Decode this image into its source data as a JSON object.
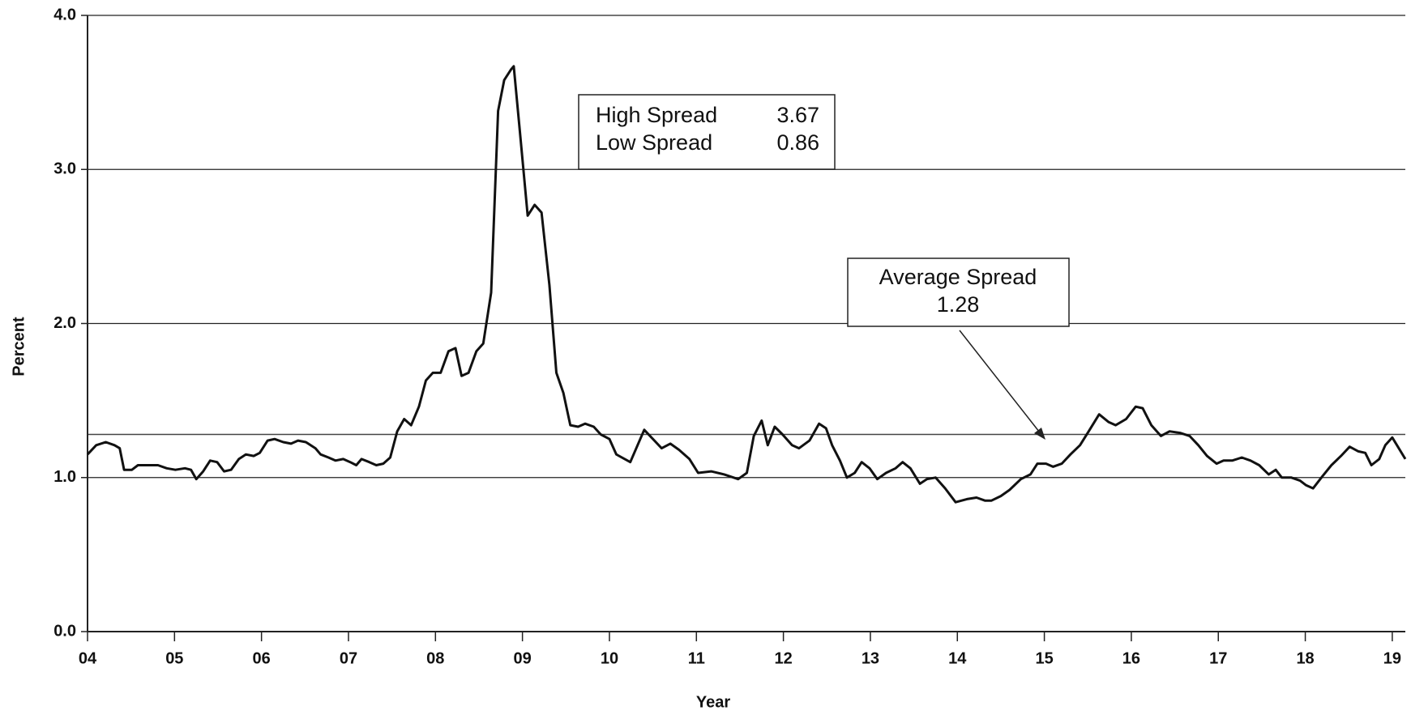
{
  "chart_data": {
    "type": "line",
    "y_label": "Percent",
    "x_label": "Year",
    "xlim": [
      2004,
      2019.15
    ],
    "ylim": [
      0,
      4
    ],
    "xticks": [
      {
        "value": 2004,
        "label": "04"
      },
      {
        "value": 2005,
        "label": "05"
      },
      {
        "value": 2006,
        "label": "06"
      },
      {
        "value": 2007,
        "label": "07"
      },
      {
        "value": 2008,
        "label": "08"
      },
      {
        "value": 2009,
        "label": "09"
      },
      {
        "value": 2010,
        "label": "10"
      },
      {
        "value": 2011,
        "label": "11"
      },
      {
        "value": 2012,
        "label": "12"
      },
      {
        "value": 2013,
        "label": "13"
      },
      {
        "value": 2014,
        "label": "14"
      },
      {
        "value": 2015,
        "label": "15"
      },
      {
        "value": 2016,
        "label": "16"
      },
      {
        "value": 2017,
        "label": "17"
      },
      {
        "value": 2018,
        "label": "18"
      },
      {
        "value": 2019,
        "label": "19"
      }
    ],
    "yticks": [
      {
        "value": 0,
        "label": "0.0"
      },
      {
        "value": 1,
        "label": "1.0"
      },
      {
        "value": 2,
        "label": "2.0"
      },
      {
        "value": 3,
        "label": "3.0"
      },
      {
        "value": 4,
        "label": "4.0"
      }
    ],
    "grid": true,
    "series": [
      {
        "color": "#111111",
        "x": [
          2004.0,
          2004.1,
          2004.21,
          2004.31,
          2004.37,
          2004.42,
          2004.51,
          2004.58,
          2004.7,
          2004.81,
          2004.91,
          2005.01,
          2005.12,
          2005.19,
          2005.25,
          2005.33,
          2005.41,
          2005.49,
          2005.57,
          2005.65,
          2005.74,
          2005.82,
          2005.91,
          2005.98,
          2006.07,
          2006.15,
          2006.25,
          2006.34,
          2006.42,
          2006.51,
          2006.62,
          2006.68,
          2006.77,
          2006.85,
          2006.94,
          2007.02,
          2007.09,
          2007.15,
          2007.24,
          2007.32,
          2007.4,
          2007.48,
          2007.56,
          2007.64,
          2007.72,
          2007.81,
          2007.89,
          2007.97,
          2008.06,
          2008.15,
          2008.23,
          2008.3,
          2008.38,
          2008.47,
          2008.55,
          2008.64,
          2008.72,
          2008.79,
          2008.87,
          2008.9,
          2008.97,
          2009.06,
          2009.14,
          2009.22,
          2009.31,
          2009.39,
          2009.47,
          2009.55,
          2009.64,
          2009.72,
          2009.82,
          2009.9,
          2010.0,
          2010.08,
          2010.24,
          2010.4,
          2010.6,
          2010.7,
          2010.8,
          2010.92,
          2011.02,
          2011.17,
          2011.32,
          2011.48,
          2011.58,
          2011.66,
          2011.75,
          2011.82,
          2011.9,
          2011.99,
          2012.1,
          2012.18,
          2012.3,
          2012.41,
          2012.49,
          2012.56,
          2012.65,
          2012.73,
          2012.82,
          2012.9,
          2012.99,
          2013.08,
          2013.18,
          2013.29,
          2013.37,
          2013.46,
          2013.57,
          2013.65,
          2013.75,
          2013.86,
          2013.98,
          2014.11,
          2014.22,
          2014.32,
          2014.39,
          2014.5,
          2014.6,
          2014.73,
          2014.84,
          2014.92,
          2015.02,
          2015.1,
          2015.2,
          2015.3,
          2015.41,
          2015.51,
          2015.63,
          2015.74,
          2015.82,
          2015.94,
          2016.05,
          2016.13,
          2016.23,
          2016.34,
          2016.44,
          2016.56,
          2016.67,
          2016.77,
          2016.87,
          2016.98,
          2017.06,
          2017.16,
          2017.27,
          2017.37,
          2017.47,
          2017.58,
          2017.66,
          2017.73,
          2017.84,
          2017.94,
          2018.01,
          2018.09,
          2018.2,
          2018.3,
          2018.41,
          2018.51,
          2018.61,
          2018.69,
          2018.76,
          2018.85,
          2018.92,
          2019.0,
          2019.15
        ],
        "values": [
          1.15,
          1.21,
          1.23,
          1.21,
          1.19,
          1.05,
          1.05,
          1.08,
          1.08,
          1.08,
          1.06,
          1.05,
          1.06,
          1.05,
          0.99,
          1.04,
          1.11,
          1.1,
          1.04,
          1.05,
          1.12,
          1.15,
          1.14,
          1.16,
          1.24,
          1.25,
          1.23,
          1.22,
          1.24,
          1.23,
          1.19,
          1.15,
          1.13,
          1.11,
          1.12,
          1.1,
          1.08,
          1.12,
          1.1,
          1.08,
          1.09,
          1.13,
          1.3,
          1.38,
          1.34,
          1.46,
          1.63,
          1.68,
          1.68,
          1.82,
          1.84,
          1.66,
          1.68,
          1.82,
          1.87,
          2.2,
          3.38,
          3.58,
          3.65,
          3.67,
          3.25,
          2.7,
          2.77,
          2.72,
          2.25,
          1.68,
          1.55,
          1.34,
          1.33,
          1.35,
          1.33,
          1.28,
          1.25,
          1.15,
          1.1,
          1.31,
          1.19,
          1.22,
          1.18,
          1.12,
          1.03,
          1.04,
          1.02,
          0.99,
          1.03,
          1.27,
          1.37,
          1.21,
          1.33,
          1.28,
          1.21,
          1.19,
          1.24,
          1.35,
          1.32,
          1.21,
          1.11,
          1.0,
          1.03,
          1.1,
          1.06,
          0.99,
          1.03,
          1.06,
          1.1,
          1.06,
          0.96,
          0.99,
          1.0,
          0.93,
          0.84,
          0.86,
          0.87,
          0.85,
          0.85,
          0.88,
          0.92,
          0.99,
          1.02,
          1.09,
          1.09,
          1.07,
          1.09,
          1.15,
          1.21,
          1.3,
          1.41,
          1.36,
          1.34,
          1.38,
          1.46,
          1.45,
          1.34,
          1.27,
          1.3,
          1.29,
          1.27,
          1.21,
          1.14,
          1.09,
          1.11,
          1.11,
          1.13,
          1.11,
          1.08,
          1.02,
          1.05,
          1.0,
          1.0,
          0.98,
          0.95,
          0.93,
          1.01,
          1.08,
          1.14,
          1.2,
          1.17,
          1.16,
          1.08,
          1.12,
          1.21,
          1.26,
          1.12
        ]
      }
    ],
    "average": {
      "label": "Average Spread",
      "value": 1.28
    },
    "annotations": [
      {
        "label": "High Spread",
        "value": 3.67
      },
      {
        "label": "Low Spread",
        "value": 0.86
      }
    ]
  }
}
